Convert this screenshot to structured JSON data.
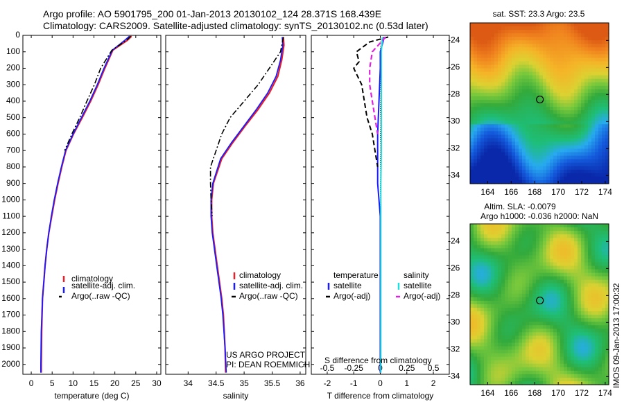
{
  "header": {
    "line1": "Argo profile: AO 5901795_200 01-Jan-2013 20130102_124 28.371S 168.439E",
    "line2": "Climatology: CARS2009. Satellite-adjusted climatology: synTS_20130102.nc (0.53d later)"
  },
  "colors": {
    "climatology": "#e8202a",
    "satellite": "#1a1aff",
    "argo": "#000000",
    "sal_satellite": "#22dddd",
    "sal_argo": "#e020e0"
  },
  "chart_data": [
    {
      "type": "line",
      "panel": "temperature",
      "xlabel": "temperature (deg C)",
      "xlim": [
        -2,
        31
      ],
      "xticks": [
        0,
        5,
        10,
        15,
        20,
        25,
        30
      ],
      "ylim": [
        0,
        2060
      ],
      "yticks": [
        0,
        100,
        200,
        300,
        400,
        500,
        600,
        700,
        800,
        900,
        1000,
        1100,
        1200,
        1300,
        1400,
        1500,
        1600,
        1700,
        1800,
        1900,
        2000
      ],
      "yreversed": true,
      "legend": [
        "climatology",
        "satellite-adj. clim.",
        "Argo(..raw -QC)"
      ],
      "series": [
        {
          "name": "climatology",
          "x": [
            24,
            23,
            19.5,
            17.6,
            16,
            14.2,
            12.2,
            10.1,
            8.3,
            7.3,
            6.4,
            5.6,
            4.9,
            4.2,
            3.7,
            3.3,
            3,
            2.7,
            2.5,
            2.4,
            2.4
          ],
          "y": [
            5,
            30,
            90,
            200,
            300,
            400,
            500,
            600,
            700,
            800,
            900,
            1000,
            1100,
            1200,
            1300,
            1400,
            1500,
            1600,
            1800,
            2000,
            2050
          ]
        },
        {
          "name": "satellite-adj. clim.",
          "x": [
            23.5,
            22.4,
            19.4,
            17.4,
            15.8,
            14,
            12,
            10,
            8.2,
            7.2,
            6.3,
            5.5,
            4.8,
            4.2,
            3.7,
            3.3,
            3,
            2.7,
            2.4,
            2.3,
            2.3
          ],
          "y": [
            5,
            30,
            90,
            200,
            300,
            400,
            500,
            600,
            700,
            800,
            900,
            1000,
            1100,
            1200,
            1300,
            1400,
            1500,
            1600,
            1800,
            2000,
            2050
          ]
        },
        {
          "name": "Argo(..raw -QC)",
          "x": [
            23.8,
            22.8,
            19.3,
            16.6,
            15.1,
            13.3,
            11.6,
            9.7,
            8
          ],
          "y": [
            5,
            30,
            90,
            200,
            300,
            400,
            500,
            600,
            700
          ]
        }
      ]
    },
    {
      "type": "line",
      "panel": "salinity",
      "xlabel": "salinity",
      "xlim": [
        33.6,
        36.1
      ],
      "xticks": [
        34,
        34.5,
        35,
        35.5,
        36
      ],
      "ylim": [
        0,
        2060
      ],
      "yreversed": true,
      "legend": [
        "climatology",
        "satellite-adj. clim.",
        "Argo(..raw -QC)"
      ],
      "annotation": [
        "US ARGO PROJECT",
        "PI: DEAN ROEMMICH"
      ],
      "series": [
        {
          "name": "climatology",
          "x": [
            35.7,
            35.71,
            35.67,
            35.6,
            35.45,
            35.25,
            35.02,
            34.8,
            34.6,
            34.45,
            34.42,
            34.42,
            34.44,
            34.48,
            34.52,
            34.56,
            34.6,
            34.63,
            34.66,
            34.67
          ],
          "y": [
            10,
            60,
            150,
            250,
            350,
            450,
            550,
            650,
            750,
            900,
            1000,
            1100,
            1200,
            1300,
            1400,
            1500,
            1600,
            1700,
            1900,
            2050
          ]
        },
        {
          "name": "satellite-adj. clim.",
          "x": [
            35.68,
            35.69,
            35.65,
            35.57,
            35.42,
            35.22,
            35,
            34.78,
            34.58,
            34.44,
            34.41,
            34.41,
            34.43,
            34.47,
            34.51,
            34.55,
            34.59,
            34.62,
            34.66,
            34.68
          ],
          "y": [
            10,
            60,
            150,
            250,
            350,
            450,
            550,
            650,
            750,
            900,
            1000,
            1100,
            1200,
            1300,
            1400,
            1500,
            1600,
            1700,
            1900,
            2050
          ]
        },
        {
          "name": "Argo(..raw -QC)",
          "x": [
            35.7,
            35.65,
            35.45,
            35.25,
            35,
            34.75,
            34.6,
            34.5,
            34.4,
            34.4,
            34.41,
            34.43
          ],
          "y": [
            10,
            100,
            200,
            300,
            400,
            500,
            600,
            700,
            800,
            900,
            1000,
            1100
          ]
        }
      ]
    },
    {
      "type": "line",
      "panel": "difference",
      "xlabel": "T difference from climatology",
      "xlabel2": "S difference from climatology",
      "xlim": [
        -2.6,
        2.6
      ],
      "xticks": [
        -2,
        -1,
        0,
        1,
        2
      ],
      "x2ticks": [
        "-0.5",
        "-0.25",
        "0",
        "0.25",
        "0.5"
      ],
      "ylim": [
        0,
        2060
      ],
      "yreversed": true,
      "legend_temperature": {
        "title": "temperature",
        "items": [
          "satellite",
          "Argo(-adj)"
        ]
      },
      "legend_salinity": {
        "title": "salinity",
        "items": [
          "satellite",
          "Argo(-adj)"
        ]
      },
      "series": [
        {
          "name": "temperature satellite",
          "x": [
            0.15,
            0,
            0,
            -0.05,
            -0.1,
            -0.1,
            -0.1,
            -0.05,
            0,
            0,
            0,
            0
          ],
          "y": [
            10,
            100,
            200,
            400,
            600,
            800,
            900,
            1000,
            1100,
            1300,
            1700,
            2050
          ]
        },
        {
          "name": "temperature Argo(-adj)",
          "x": [
            0.3,
            -0.4,
            -0.9,
            -0.8,
            -1.0,
            -0.7,
            -0.6,
            -0.5,
            -0.3,
            -0.2,
            -0.1
          ],
          "y": [
            10,
            40,
            100,
            160,
            200,
            300,
            400,
            500,
            600,
            700,
            800
          ]
        },
        {
          "name": "salinity satellite",
          "x": [
            0.08,
            0.04,
            0.04,
            0.04,
            0.04,
            0.02,
            0.02,
            0.02,
            0.02
          ],
          "y": [
            10,
            100,
            300,
            500,
            700,
            900,
            1200,
            1700,
            2050
          ]
        },
        {
          "name": "salinity Argo(-adj)",
          "x": [
            0.2,
            -0.3,
            -0.4,
            -0.4,
            -0.3,
            -0.2,
            -0.1
          ],
          "y": [
            10,
            100,
            200,
            300,
            400,
            500,
            600
          ]
        }
      ]
    },
    {
      "type": "heatmap",
      "panel": "sst_map",
      "title": "sat. SST: 23.3  Argo: 23.5",
      "xlim": [
        162.5,
        174.3
      ],
      "ylim": [
        -34.6,
        -22.7
      ],
      "xticks": [
        164,
        166,
        168,
        170,
        172,
        174
      ],
      "yticks": [
        -24,
        -26,
        -28,
        -30,
        -32,
        -34
      ],
      "profile_position": {
        "lon": 168.44,
        "lat": -28.37
      }
    },
    {
      "type": "heatmap",
      "panel": "sla_map",
      "title_line1": "Altim. SLA: -0.0079",
      "title_line2": "Argo h1000: -0.036 h2000: NaN",
      "xlim": [
        162.5,
        174.3
      ],
      "ylim": [
        -34.6,
        -22.7
      ],
      "xticks": [
        164,
        166,
        168,
        170,
        172,
        174
      ],
      "yticks": [
        -24,
        -26,
        -28,
        -30,
        -32,
        -34
      ],
      "profile_position": {
        "lon": 168.44,
        "lat": -28.37
      }
    }
  ],
  "footer": {
    "imos_stamp": "IMOS 09-Jan-2013 17:00:32"
  }
}
